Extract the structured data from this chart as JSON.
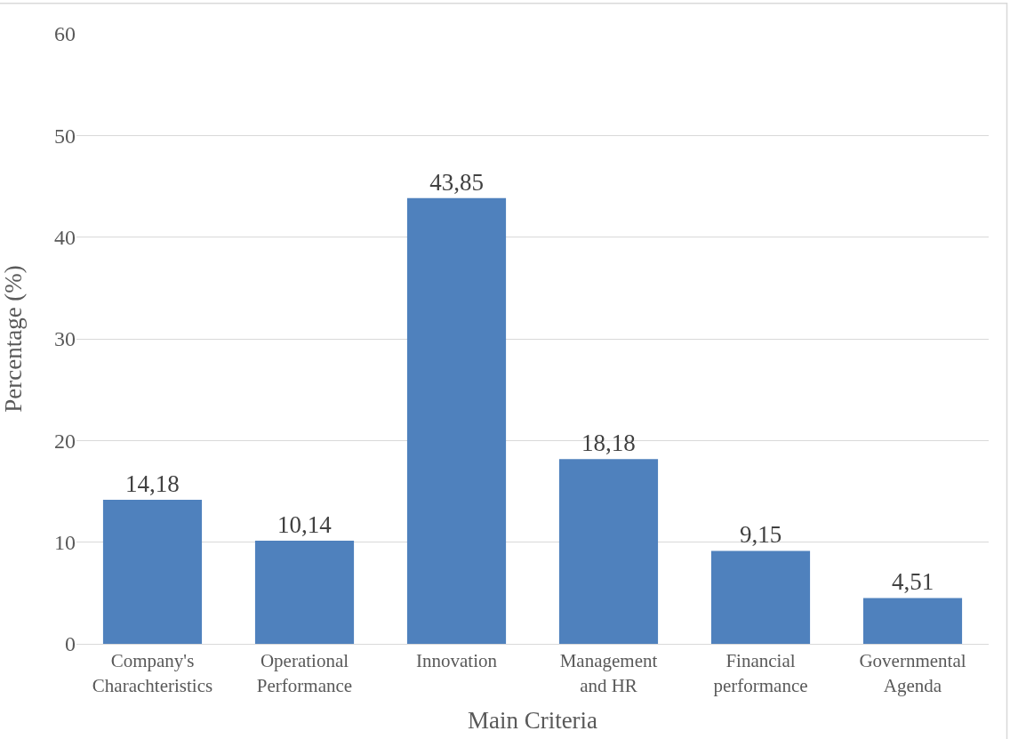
{
  "chart_data": {
    "type": "bar",
    "xlabel": "Main Criteria",
    "ylabel": "Percentage (%)",
    "categories": [
      "Company's Charachteristics",
      "Operational Performance",
      "Innovation",
      "Management and HR",
      "Financial performance",
      "Governmental Agenda"
    ],
    "values": [
      14.18,
      10.14,
      43.85,
      18.18,
      9.15,
      4.51
    ],
    "value_labels": [
      "14,18",
      "10,14",
      "43,85",
      "18,18",
      "9,15",
      "4,51"
    ],
    "color": "#4f81bd",
    "ylim": [
      0,
      60
    ],
    "yticks": [
      0,
      10,
      20,
      30,
      40,
      50,
      60
    ],
    "grid": "y"
  }
}
